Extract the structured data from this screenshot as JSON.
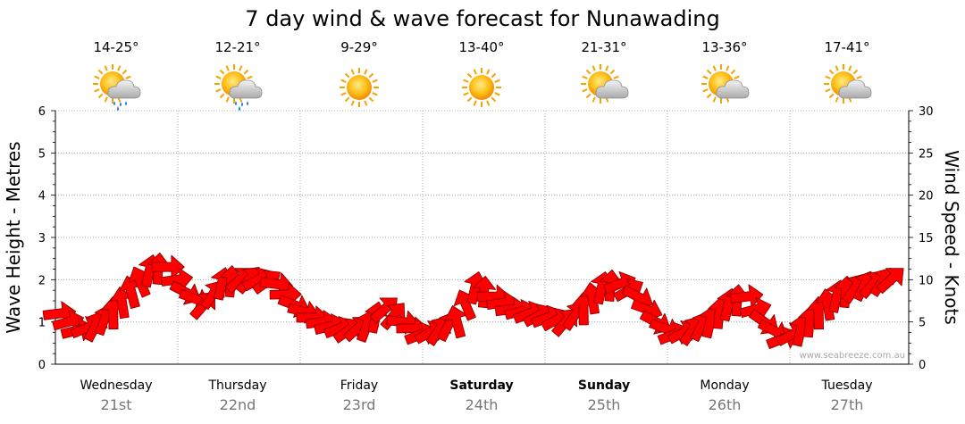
{
  "title": "7 day wind & wave forecast for Nunawading",
  "watermark": "www.seabreeze.com.au",
  "days": [
    {
      "name": "Wednesday",
      "date": "21st",
      "temp": "14-25°",
      "weather": "partly-cloudy-rain-icon",
      "bold": false
    },
    {
      "name": "Thursday",
      "date": "22nd",
      "temp": "12-21°",
      "weather": "partly-cloudy-rain-icon",
      "bold": false
    },
    {
      "name": "Friday",
      "date": "23rd",
      "temp": "9-29°",
      "weather": "sunny-icon",
      "bold": false
    },
    {
      "name": "Saturday",
      "date": "24th",
      "temp": "13-40°",
      "weather": "sunny-icon",
      "bold": true
    },
    {
      "name": "Sunday",
      "date": "25th",
      "temp": "21-31°",
      "weather": "partly-cloudy-icon",
      "bold": true
    },
    {
      "name": "Monday",
      "date": "26th",
      "temp": "13-36°",
      "weather": "partly-cloudy-icon",
      "bold": false
    },
    {
      "name": "Tuesday",
      "date": "27th",
      "temp": "17-41°",
      "weather": "partly-cloudy-icon",
      "bold": false
    }
  ],
  "chart_data": {
    "type": "line",
    "title": "7 day wind & wave forecast for Nunawading",
    "ylabel_left": "Wave Height - Metres",
    "ylabel_right": "Wind Speed - Knots",
    "ylim_left": [
      0,
      6
    ],
    "ylim_right": [
      0,
      30
    ],
    "yticks_left": [
      "0",
      "1",
      "2",
      "3",
      "4",
      "5",
      "6"
    ],
    "yticks_right": [
      "0",
      "5",
      "10",
      "15",
      "20",
      "25",
      "30"
    ],
    "categories": [
      "Wednesday 21st",
      "Thursday 22nd",
      "Friday 23rd",
      "Saturday 24th",
      "Sunday 25th",
      "Monday 26th",
      "Tuesday 27th"
    ],
    "grid": true,
    "series": [
      {
        "color": "#ff0000",
        "x_days": [
          0.0,
          0.15,
          0.3,
          0.45,
          0.6,
          0.75,
          0.9,
          1.05,
          1.2,
          1.35,
          1.5,
          1.65,
          1.8,
          1.95,
          2.1,
          2.25,
          2.4,
          2.55,
          2.7,
          2.85,
          3.0,
          3.15,
          3.3,
          3.45,
          3.6,
          3.75,
          3.9,
          4.05,
          4.2,
          4.35,
          4.5,
          4.65,
          4.8,
          4.95,
          5.1,
          5.25,
          5.4,
          5.55,
          5.7,
          5.85,
          6.0,
          6.15,
          6.3,
          6.45,
          6.6,
          6.75,
          6.9
        ],
        "wind_knots": [
          6,
          4,
          4.5,
          6,
          8.5,
          11,
          11.5,
          8.5,
          7,
          9.5,
          10,
          10,
          9.5,
          7,
          5.5,
          4.5,
          4,
          4.5,
          6.5,
          5,
          3.5,
          4,
          5,
          9,
          8,
          6.5,
          6,
          5.5,
          5,
          6.5,
          9,
          9.5,
          8,
          5,
          3.5,
          4,
          5,
          7,
          8,
          5,
          3,
          4,
          6,
          8,
          9,
          9.5,
          10
        ]
      }
    ]
  }
}
